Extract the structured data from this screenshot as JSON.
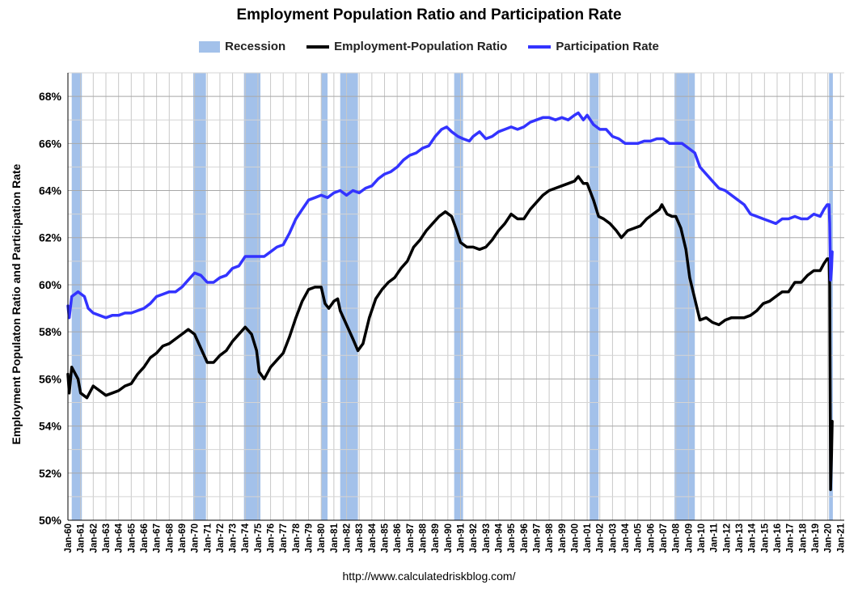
{
  "chart_data": {
    "type": "line",
    "title": "Employment Population Ratio and Participation Rate",
    "ylabel": "Employment Populaton Ratio and Participation Rate",
    "xlabel": "",
    "source": "http://www.calculatedriskblog.com/",
    "ylim": [
      50,
      69
    ],
    "xlim": [
      1960,
      2021.3
    ],
    "yticks": [
      "50%",
      "52%",
      "54%",
      "56%",
      "58%",
      "60%",
      "62%",
      "64%",
      "66%",
      "68%"
    ],
    "ytick_values": [
      50,
      52,
      54,
      56,
      58,
      60,
      62,
      64,
      66,
      68
    ],
    "xticks": [
      "Jan-60",
      "Jan-61",
      "Jan-62",
      "Jan-63",
      "Jan-64",
      "Jan-65",
      "Jan-66",
      "Jan-67",
      "Jan-68",
      "Jan-69",
      "Jan-70",
      "Jan-71",
      "Jan-72",
      "Jan-73",
      "Jan-74",
      "Jan-75",
      "Jan-76",
      "Jan-77",
      "Jan-78",
      "Jan-79",
      "Jan-80",
      "Jan-81",
      "Jan-82",
      "Jan-83",
      "Jan-84",
      "Jan-85",
      "Jan-86",
      "Jan-87",
      "Jan-88",
      "Jan-89",
      "Jan-90",
      "Jan-91",
      "Jan-92",
      "Jan-93",
      "Jan-94",
      "Jan-95",
      "Jan-96",
      "Jan-97",
      "Jan-98",
      "Jan-99",
      "Jan-00",
      "Jan-01",
      "Jan-02",
      "Jan-03",
      "Jan-04",
      "Jan-05",
      "Jan-06",
      "Jan-07",
      "Jan-08",
      "Jan-09",
      "Jan-10",
      "Jan-11",
      "Jan-12",
      "Jan-13",
      "Jan-14",
      "Jan-15",
      "Jan-16",
      "Jan-17",
      "Jan-18",
      "Jan-19",
      "Jan-20",
      "Jan-21"
    ],
    "grid": true,
    "legend_position": "top",
    "legend": [
      "Recession",
      "Employment-Population Ratio",
      "Participation Rate"
    ],
    "recessions": [
      [
        1960.3,
        1961.1
      ],
      [
        1969.9,
        1970.9
      ],
      [
        1973.9,
        1975.2
      ],
      [
        1980.0,
        1980.5
      ],
      [
        1981.5,
        1982.9
      ],
      [
        1990.5,
        1991.2
      ],
      [
        2001.2,
        2001.9
      ],
      [
        2007.9,
        2009.5
      ],
      [
        2020.1,
        2020.4
      ]
    ],
    "series": [
      {
        "name": "Employment-Population Ratio",
        "color": "#000000",
        "points": [
          [
            1960.0,
            56.2
          ],
          [
            1960.1,
            55.4
          ],
          [
            1960.3,
            56.5
          ],
          [
            1960.8,
            56.0
          ],
          [
            1961.0,
            55.4
          ],
          [
            1961.5,
            55.2
          ],
          [
            1962.0,
            55.7
          ],
          [
            1962.5,
            55.5
          ],
          [
            1963.0,
            55.3
          ],
          [
            1963.5,
            55.4
          ],
          [
            1964.0,
            55.5
          ],
          [
            1964.5,
            55.7
          ],
          [
            1965.0,
            55.8
          ],
          [
            1965.5,
            56.2
          ],
          [
            1966.0,
            56.5
          ],
          [
            1966.5,
            56.9
          ],
          [
            1967.0,
            57.1
          ],
          [
            1967.5,
            57.4
          ],
          [
            1968.0,
            57.5
          ],
          [
            1968.5,
            57.7
          ],
          [
            1969.0,
            57.9
          ],
          [
            1969.5,
            58.1
          ],
          [
            1970.0,
            57.9
          ],
          [
            1970.5,
            57.3
          ],
          [
            1971.0,
            56.7
          ],
          [
            1971.5,
            56.7
          ],
          [
            1972.0,
            57.0
          ],
          [
            1972.5,
            57.2
          ],
          [
            1973.0,
            57.6
          ],
          [
            1973.5,
            57.9
          ],
          [
            1974.0,
            58.2
          ],
          [
            1974.5,
            57.9
          ],
          [
            1974.9,
            57.2
          ],
          [
            1975.1,
            56.3
          ],
          [
            1975.5,
            56.0
          ],
          [
            1976.0,
            56.5
          ],
          [
            1976.5,
            56.8
          ],
          [
            1977.0,
            57.1
          ],
          [
            1977.5,
            57.8
          ],
          [
            1978.0,
            58.6
          ],
          [
            1978.5,
            59.3
          ],
          [
            1979.0,
            59.8
          ],
          [
            1979.5,
            59.9
          ],
          [
            1980.0,
            59.9
          ],
          [
            1980.3,
            59.2
          ],
          [
            1980.6,
            59.0
          ],
          [
            1981.0,
            59.3
          ],
          [
            1981.3,
            59.4
          ],
          [
            1981.5,
            58.9
          ],
          [
            1982.0,
            58.3
          ],
          [
            1982.5,
            57.7
          ],
          [
            1982.9,
            57.2
          ],
          [
            1983.3,
            57.5
          ],
          [
            1983.8,
            58.6
          ],
          [
            1984.3,
            59.4
          ],
          [
            1984.8,
            59.8
          ],
          [
            1985.3,
            60.1
          ],
          [
            1985.8,
            60.3
          ],
          [
            1986.3,
            60.7
          ],
          [
            1986.8,
            61.0
          ],
          [
            1987.3,
            61.6
          ],
          [
            1987.8,
            61.9
          ],
          [
            1988.3,
            62.3
          ],
          [
            1988.8,
            62.6
          ],
          [
            1989.3,
            62.9
          ],
          [
            1989.8,
            63.1
          ],
          [
            1990.3,
            62.9
          ],
          [
            1990.7,
            62.3
          ],
          [
            1991.0,
            61.8
          ],
          [
            1991.5,
            61.6
          ],
          [
            1992.0,
            61.6
          ],
          [
            1992.5,
            61.5
          ],
          [
            1993.0,
            61.6
          ],
          [
            1993.5,
            61.9
          ],
          [
            1994.0,
            62.3
          ],
          [
            1994.5,
            62.6
          ],
          [
            1995.0,
            63.0
          ],
          [
            1995.5,
            62.8
          ],
          [
            1996.0,
            62.8
          ],
          [
            1996.5,
            63.2
          ],
          [
            1997.0,
            63.5
          ],
          [
            1997.5,
            63.8
          ],
          [
            1998.0,
            64.0
          ],
          [
            1998.5,
            64.1
          ],
          [
            1999.0,
            64.2
          ],
          [
            1999.5,
            64.3
          ],
          [
            2000.0,
            64.4
          ],
          [
            2000.3,
            64.6
          ],
          [
            2000.7,
            64.3
          ],
          [
            2001.0,
            64.3
          ],
          [
            2001.5,
            63.6
          ],
          [
            2001.9,
            62.9
          ],
          [
            2002.3,
            62.8
          ],
          [
            2002.8,
            62.6
          ],
          [
            2003.3,
            62.3
          ],
          [
            2003.7,
            62.0
          ],
          [
            2004.2,
            62.3
          ],
          [
            2004.7,
            62.4
          ],
          [
            2005.2,
            62.5
          ],
          [
            2005.7,
            62.8
          ],
          [
            2006.2,
            63.0
          ],
          [
            2006.7,
            63.2
          ],
          [
            2006.9,
            63.4
          ],
          [
            2007.3,
            63.0
          ],
          [
            2007.7,
            62.9
          ],
          [
            2008.0,
            62.9
          ],
          [
            2008.4,
            62.4
          ],
          [
            2008.8,
            61.5
          ],
          [
            2009.1,
            60.3
          ],
          [
            2009.5,
            59.4
          ],
          [
            2009.9,
            58.5
          ],
          [
            2010.4,
            58.6
          ],
          [
            2010.9,
            58.4
          ],
          [
            2011.4,
            58.3
          ],
          [
            2011.9,
            58.5
          ],
          [
            2012.4,
            58.6
          ],
          [
            2012.9,
            58.6
          ],
          [
            2013.4,
            58.6
          ],
          [
            2013.9,
            58.7
          ],
          [
            2014.4,
            58.9
          ],
          [
            2014.9,
            59.2
          ],
          [
            2015.4,
            59.3
          ],
          [
            2015.9,
            59.5
          ],
          [
            2016.4,
            59.7
          ],
          [
            2016.9,
            59.7
          ],
          [
            2017.4,
            60.1
          ],
          [
            2017.9,
            60.1
          ],
          [
            2018.4,
            60.4
          ],
          [
            2018.9,
            60.6
          ],
          [
            2019.4,
            60.6
          ],
          [
            2019.7,
            60.9
          ],
          [
            2019.95,
            61.1
          ],
          [
            2020.1,
            61.1
          ],
          [
            2020.15,
            60.0
          ],
          [
            2020.22,
            51.3
          ],
          [
            2020.3,
            52.8
          ],
          [
            2020.35,
            54.2
          ]
        ]
      },
      {
        "name": "Participation Rate",
        "color": "#3333ff",
        "points": [
          [
            1960.0,
            59.1
          ],
          [
            1960.1,
            58.6
          ],
          [
            1960.3,
            59.5
          ],
          [
            1960.8,
            59.7
          ],
          [
            1961.3,
            59.5
          ],
          [
            1961.6,
            59.0
          ],
          [
            1962.0,
            58.8
          ],
          [
            1962.5,
            58.7
          ],
          [
            1963.0,
            58.6
          ],
          [
            1963.5,
            58.7
          ],
          [
            1964.0,
            58.7
          ],
          [
            1964.5,
            58.8
          ],
          [
            1965.0,
            58.8
          ],
          [
            1965.5,
            58.9
          ],
          [
            1966.0,
            59.0
          ],
          [
            1966.5,
            59.2
          ],
          [
            1967.0,
            59.5
          ],
          [
            1967.5,
            59.6
          ],
          [
            1968.0,
            59.7
          ],
          [
            1968.5,
            59.7
          ],
          [
            1969.0,
            59.9
          ],
          [
            1969.5,
            60.2
          ],
          [
            1970.0,
            60.5
          ],
          [
            1970.5,
            60.4
          ],
          [
            1971.0,
            60.1
          ],
          [
            1971.5,
            60.1
          ],
          [
            1972.0,
            60.3
          ],
          [
            1972.5,
            60.4
          ],
          [
            1973.0,
            60.7
          ],
          [
            1973.5,
            60.8
          ],
          [
            1974.0,
            61.2
          ],
          [
            1974.5,
            61.2
          ],
          [
            1975.0,
            61.2
          ],
          [
            1975.5,
            61.2
          ],
          [
            1976.0,
            61.4
          ],
          [
            1976.5,
            61.6
          ],
          [
            1977.0,
            61.7
          ],
          [
            1977.5,
            62.2
          ],
          [
            1978.0,
            62.8
          ],
          [
            1978.5,
            63.2
          ],
          [
            1979.0,
            63.6
          ],
          [
            1979.5,
            63.7
          ],
          [
            1980.0,
            63.8
          ],
          [
            1980.5,
            63.7
          ],
          [
            1981.0,
            63.9
          ],
          [
            1981.5,
            64.0
          ],
          [
            1982.0,
            63.8
          ],
          [
            1982.5,
            64.0
          ],
          [
            1983.0,
            63.9
          ],
          [
            1983.5,
            64.1
          ],
          [
            1984.0,
            64.2
          ],
          [
            1984.5,
            64.5
          ],
          [
            1985.0,
            64.7
          ],
          [
            1985.5,
            64.8
          ],
          [
            1986.0,
            65.0
          ],
          [
            1986.5,
            65.3
          ],
          [
            1987.0,
            65.5
          ],
          [
            1987.5,
            65.6
          ],
          [
            1988.0,
            65.8
          ],
          [
            1988.5,
            65.9
          ],
          [
            1989.0,
            66.3
          ],
          [
            1989.5,
            66.6
          ],
          [
            1989.9,
            66.7
          ],
          [
            1990.3,
            66.5
          ],
          [
            1990.8,
            66.3
          ],
          [
            1991.2,
            66.2
          ],
          [
            1991.7,
            66.1
          ],
          [
            1992.0,
            66.3
          ],
          [
            1992.5,
            66.5
          ],
          [
            1993.0,
            66.2
          ],
          [
            1993.5,
            66.3
          ],
          [
            1994.0,
            66.5
          ],
          [
            1994.5,
            66.6
          ],
          [
            1995.0,
            66.7
          ],
          [
            1995.5,
            66.6
          ],
          [
            1996.0,
            66.7
          ],
          [
            1996.5,
            66.9
          ],
          [
            1997.0,
            67.0
          ],
          [
            1997.5,
            67.1
          ],
          [
            1998.0,
            67.1
          ],
          [
            1998.5,
            67.0
          ],
          [
            1999.0,
            67.1
          ],
          [
            1999.5,
            67.0
          ],
          [
            2000.0,
            67.2
          ],
          [
            2000.3,
            67.3
          ],
          [
            2000.7,
            67.0
          ],
          [
            2001.0,
            67.2
          ],
          [
            2001.5,
            66.8
          ],
          [
            2002.0,
            66.6
          ],
          [
            2002.5,
            66.6
          ],
          [
            2003.0,
            66.3
          ],
          [
            2003.5,
            66.2
          ],
          [
            2004.0,
            66.0
          ],
          [
            2004.5,
            66.0
          ],
          [
            2005.0,
            66.0
          ],
          [
            2005.5,
            66.1
          ],
          [
            2006.0,
            66.1
          ],
          [
            2006.5,
            66.2
          ],
          [
            2007.0,
            66.2
          ],
          [
            2007.5,
            66.0
          ],
          [
            2008.0,
            66.0
          ],
          [
            2008.5,
            66.0
          ],
          [
            2009.0,
            65.8
          ],
          [
            2009.5,
            65.6
          ],
          [
            2009.9,
            65.0
          ],
          [
            2010.4,
            64.7
          ],
          [
            2010.9,
            64.4
          ],
          [
            2011.4,
            64.1
          ],
          [
            2011.9,
            64.0
          ],
          [
            2012.4,
            63.8
          ],
          [
            2012.9,
            63.6
          ],
          [
            2013.4,
            63.4
          ],
          [
            2013.9,
            63.0
          ],
          [
            2014.4,
            62.9
          ],
          [
            2014.9,
            62.8
          ],
          [
            2015.4,
            62.7
          ],
          [
            2015.9,
            62.6
          ],
          [
            2016.4,
            62.8
          ],
          [
            2016.9,
            62.8
          ],
          [
            2017.4,
            62.9
          ],
          [
            2017.9,
            62.8
          ],
          [
            2018.4,
            62.8
          ],
          [
            2018.9,
            63.0
          ],
          [
            2019.4,
            62.9
          ],
          [
            2019.7,
            63.2
          ],
          [
            2019.95,
            63.4
          ],
          [
            2020.1,
            63.4
          ],
          [
            2020.15,
            62.6
          ],
          [
            2020.22,
            60.2
          ],
          [
            2020.3,
            60.7
          ],
          [
            2020.35,
            61.4
          ]
        ]
      }
    ]
  },
  "colors": {
    "recession": "#a3c1ea",
    "grid": "#c8c8c8",
    "axis": "#000000"
  }
}
